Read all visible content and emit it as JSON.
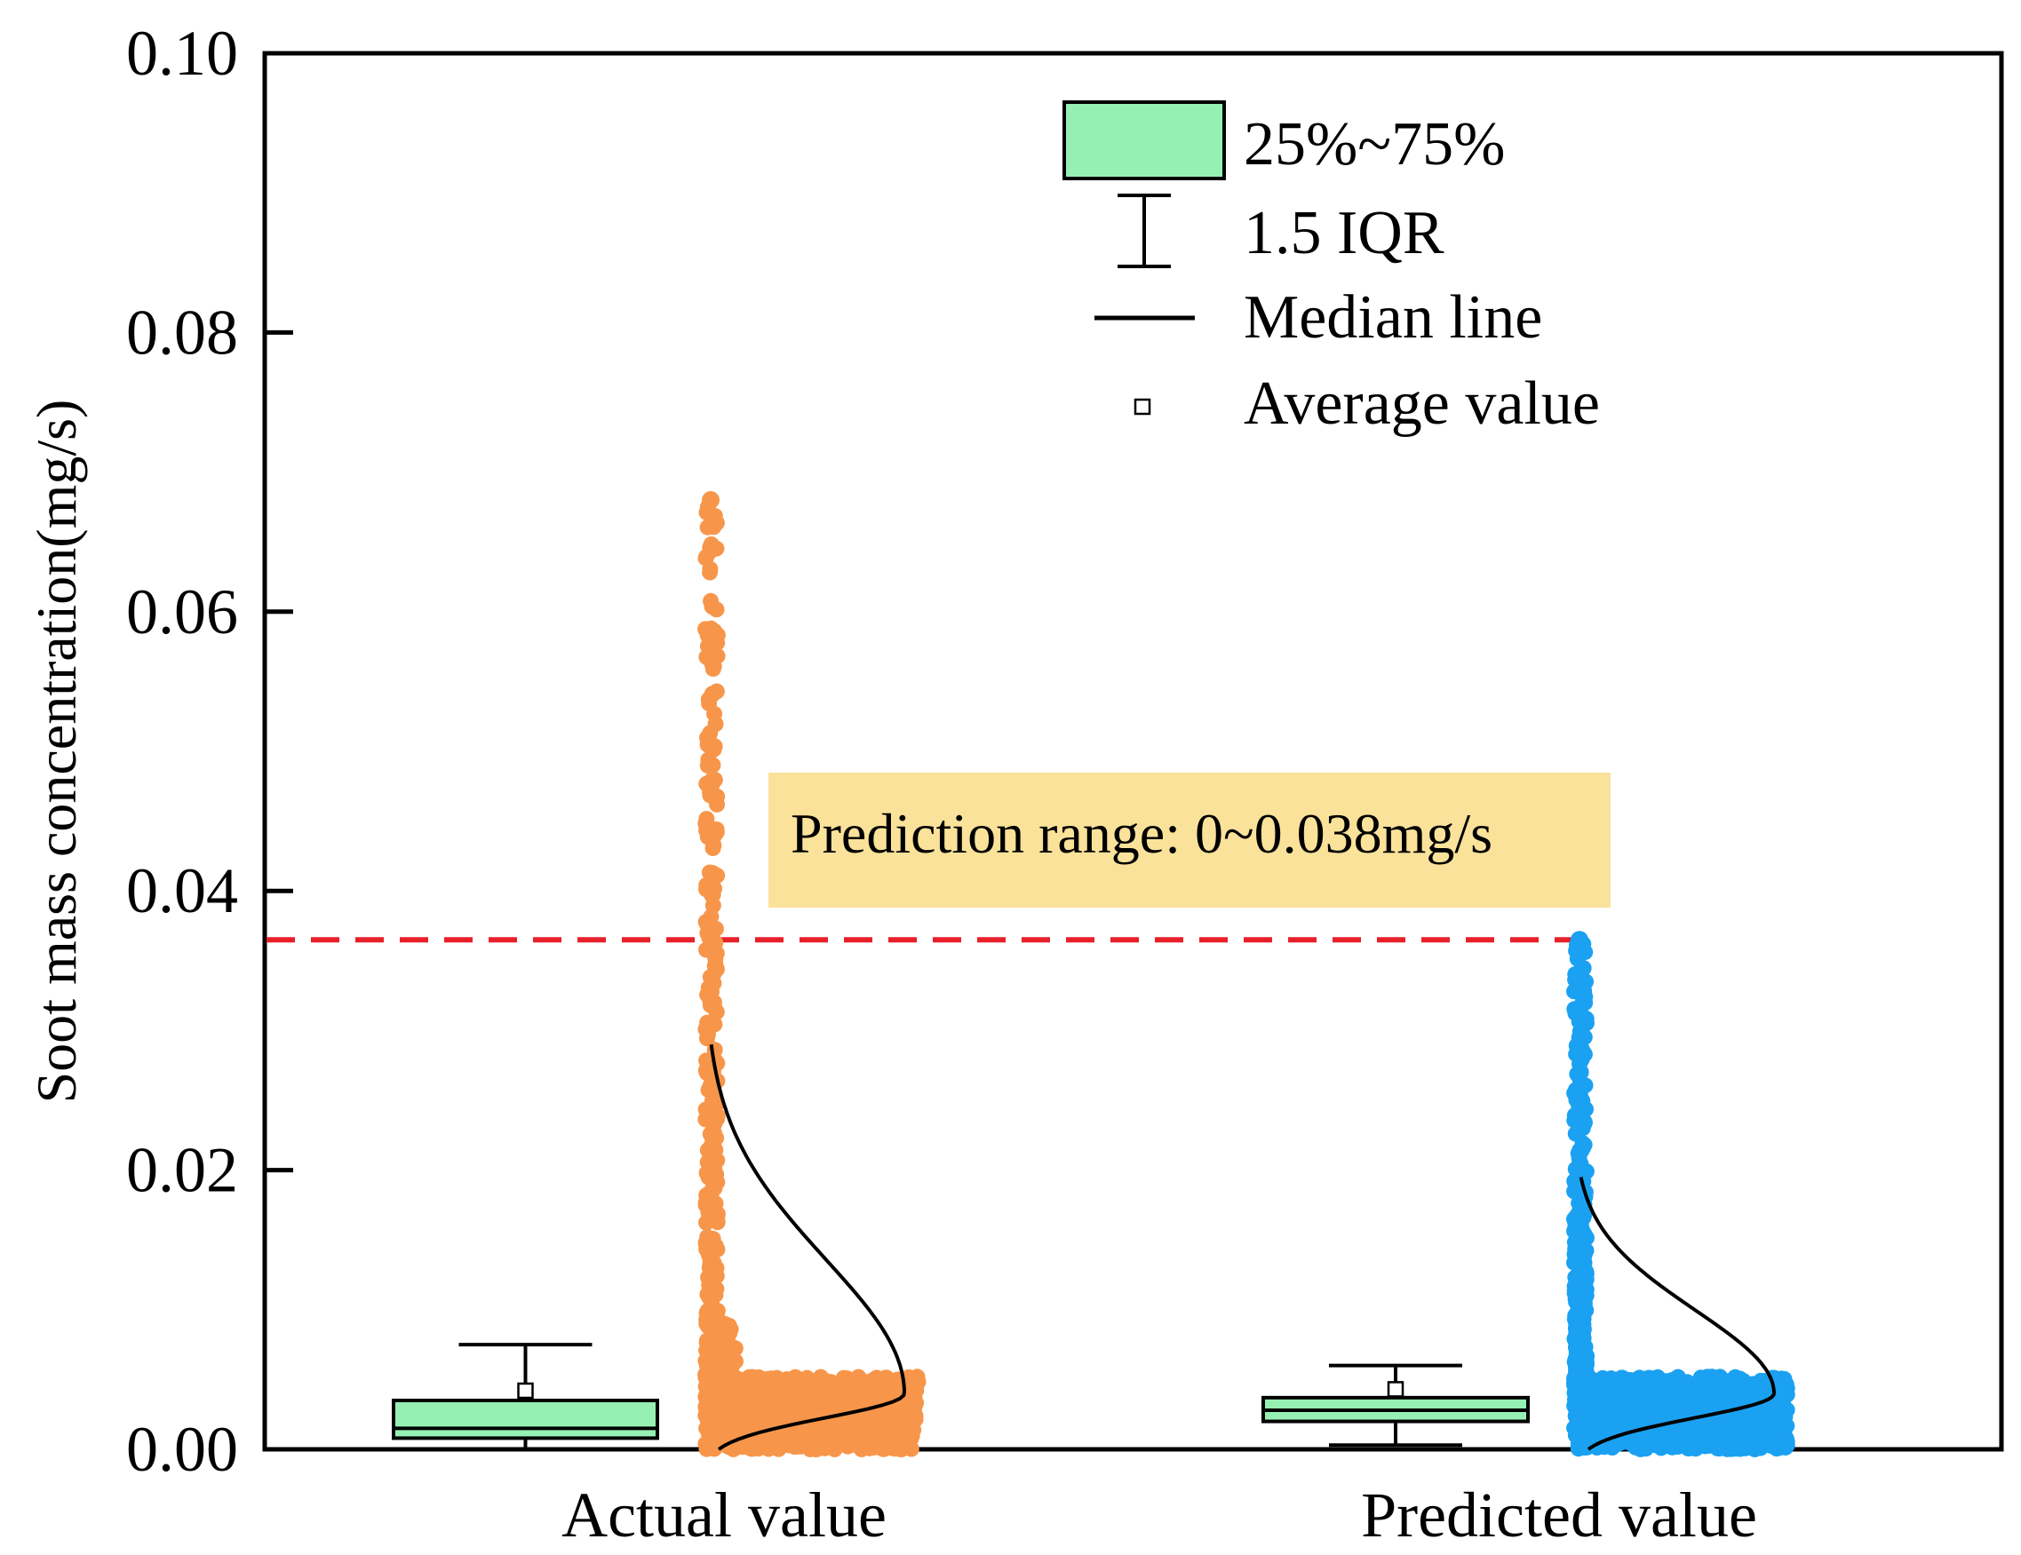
{
  "chart_data": {
    "type": "box-with-scatter",
    "title": "",
    "xlabel": "",
    "ylabel": "Soot mass concentration(mg/s)",
    "ylim": [
      0,
      0.1
    ],
    "yticks": [
      "0.00",
      "0.02",
      "0.04",
      "0.06",
      "0.08",
      "0.10"
    ],
    "grid": false,
    "legend_position": "top-right",
    "categories": [
      "Actual value",
      "Predicted value"
    ],
    "series": [
      {
        "name": "Actual value",
        "box": {
          "q1": 0.0008,
          "median": 0.0015,
          "q3": 0.0035,
          "whisker_low": 0.0,
          "whisker_high": 0.0075,
          "mean": 0.0042
        },
        "points_color": "#F7964B",
        "points_max": 0.068,
        "density_peak": 0.004,
        "curve_top": 0.029
      },
      {
        "name": "Predicted value",
        "box": {
          "q1": 0.002,
          "median": 0.0028,
          "q3": 0.0037,
          "whisker_low": 0.0003,
          "whisker_high": 0.006,
          "mean": 0.0043
        },
        "points_color": "#1BA1F2",
        "points_max": 0.0365,
        "density_peak": 0.004,
        "curve_top": 0.0195
      }
    ],
    "legend": {
      "box_label": "25%~75%",
      "whisker_label": "1.5 IQR",
      "median_label": "Median line",
      "mean_label": "Average value"
    },
    "annotation": {
      "text": "Prediction range: 0~0.038mg/s",
      "threshold": 0.0365,
      "line_color": "#E8202A",
      "box_fill": "#FAE29A"
    },
    "colors": {
      "box_fill": "#96F0B4",
      "axis": "#000000"
    }
  }
}
